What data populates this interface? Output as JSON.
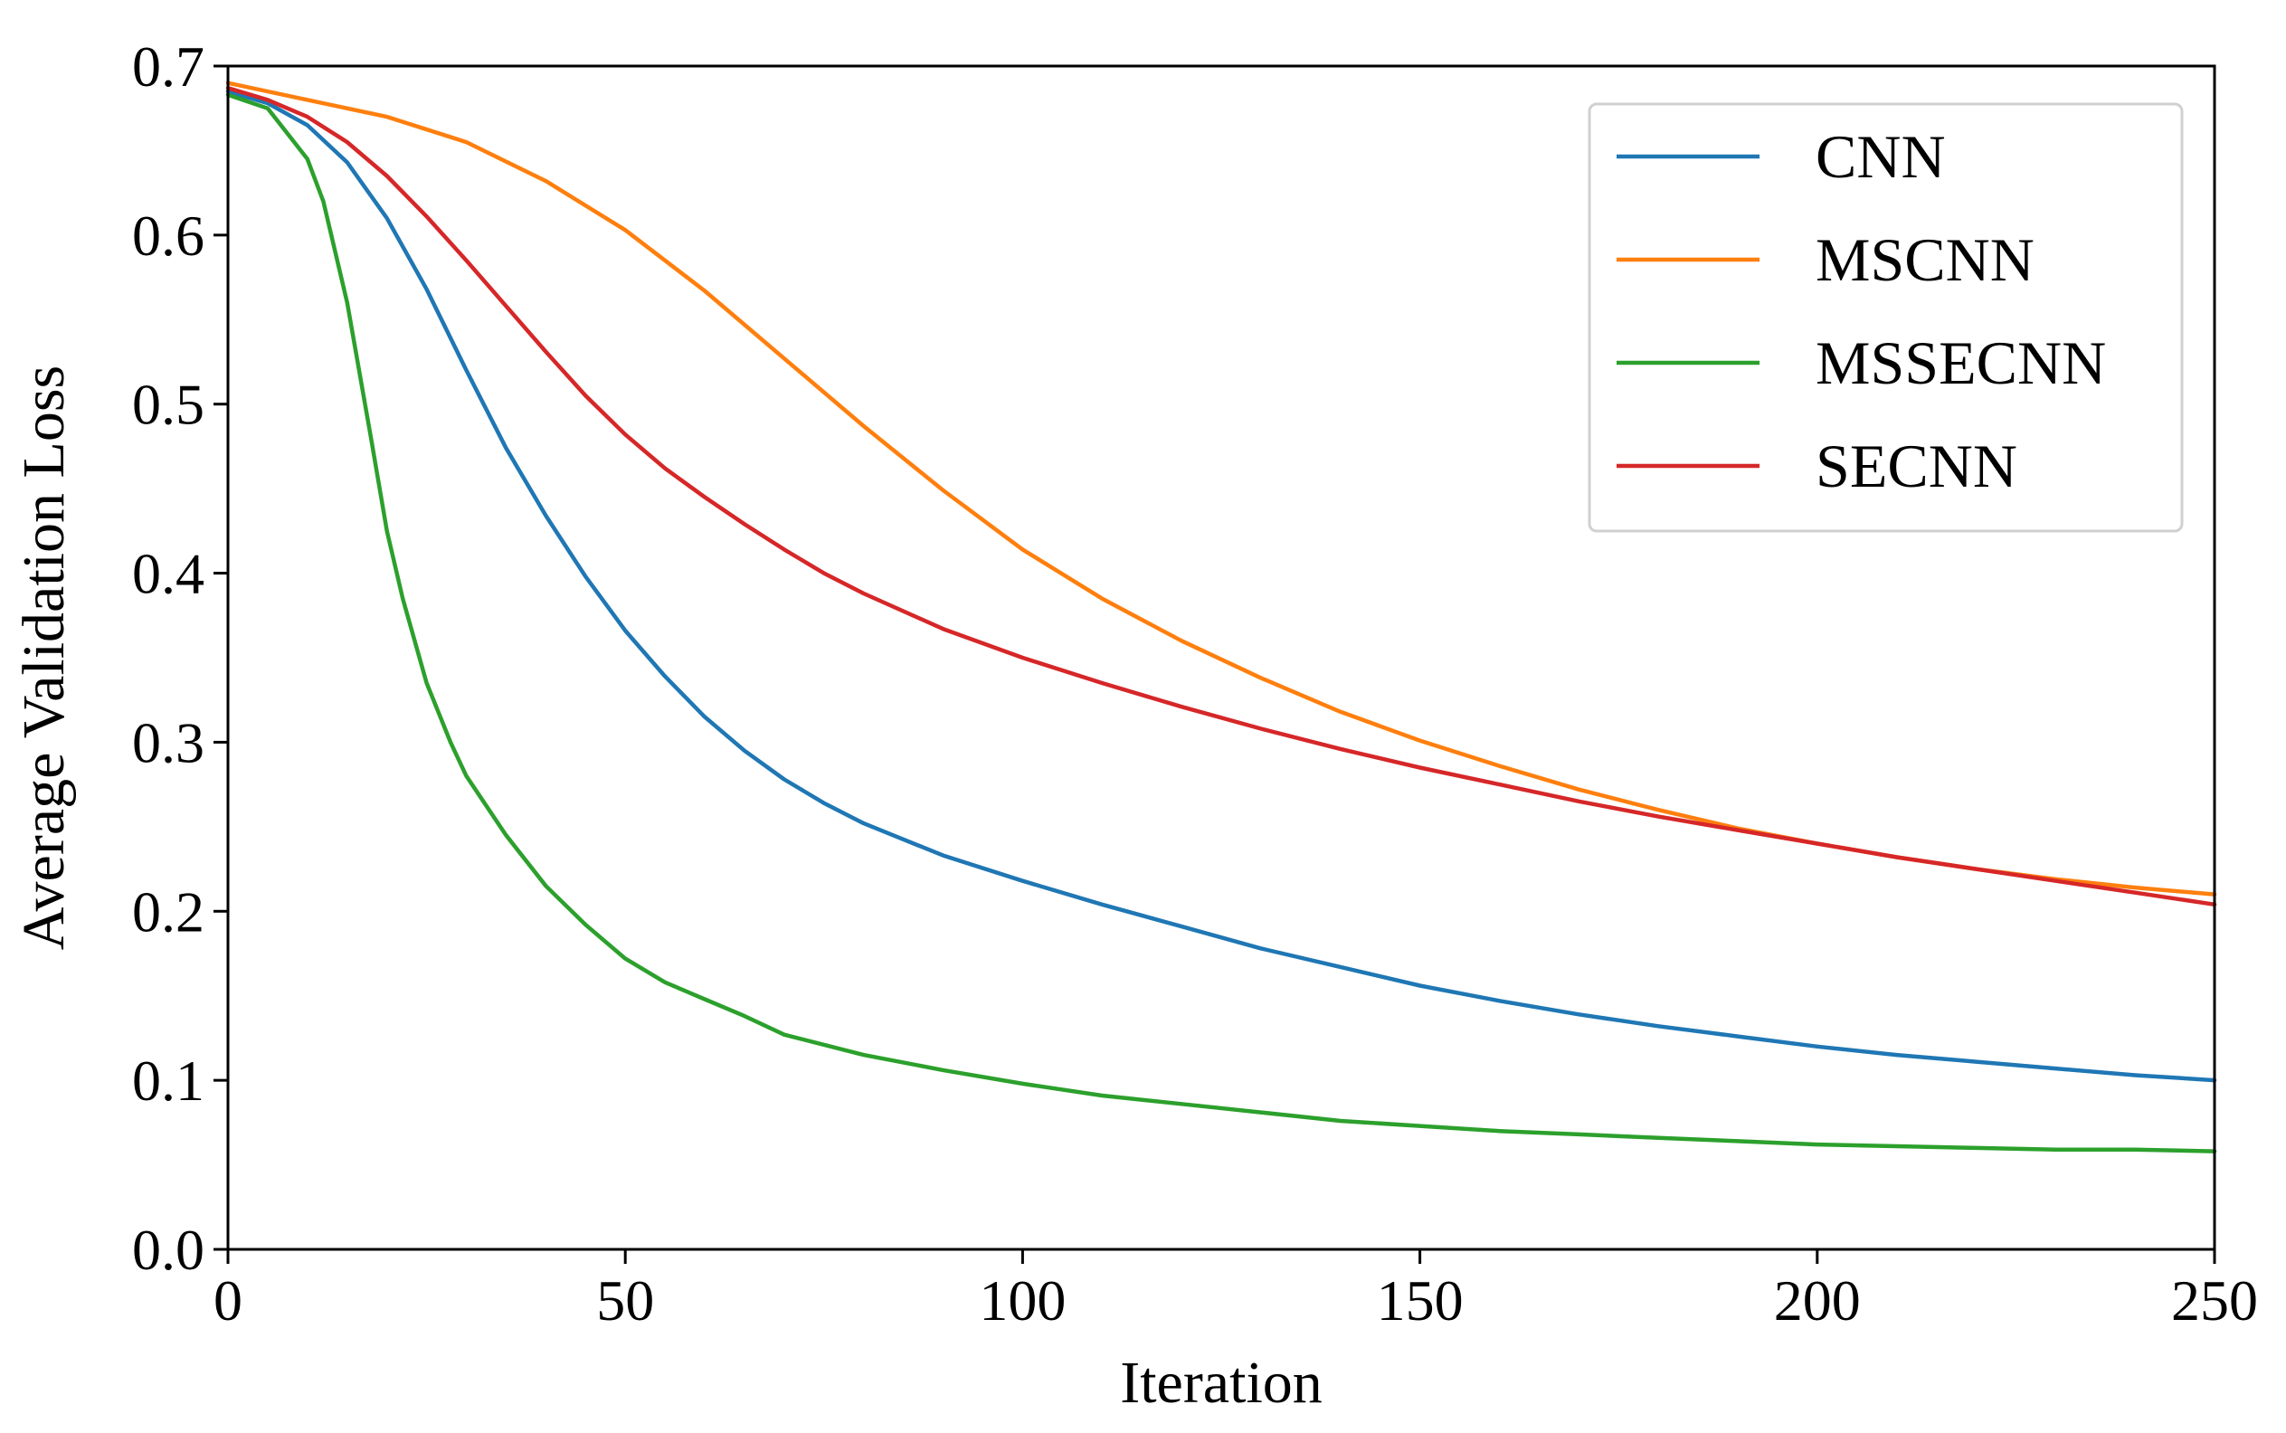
{
  "chart_data": {
    "type": "line",
    "title": "",
    "xlabel": "Iteration",
    "ylabel": "Average Validation Loss",
    "xlim": [
      0,
      250
    ],
    "ylim": [
      0.0,
      0.7
    ],
    "xticks": [
      0,
      50,
      100,
      150,
      200,
      250
    ],
    "xtick_labels": [
      "0",
      "50",
      "100",
      "150",
      "200",
      "250"
    ],
    "yticks": [
      0.0,
      0.1,
      0.2,
      0.3,
      0.4,
      0.5,
      0.6,
      0.7
    ],
    "ytick_labels": [
      "0.0",
      "0.1",
      "0.2",
      "0.3",
      "0.4",
      "0.5",
      "0.6",
      "0.7"
    ],
    "grid": false,
    "legend_position": "top-right",
    "series": [
      {
        "name": "CNN",
        "color": "#1f77b4",
        "x": [
          0,
          5,
          10,
          15,
          20,
          25,
          30,
          35,
          40,
          45,
          50,
          55,
          60,
          65,
          70,
          75,
          80,
          90,
          100,
          110,
          120,
          130,
          140,
          150,
          160,
          170,
          180,
          190,
          200,
          210,
          220,
          230,
          240,
          250
        ],
        "y": [
          0.685,
          0.678,
          0.665,
          0.643,
          0.61,
          0.568,
          0.52,
          0.474,
          0.434,
          0.398,
          0.366,
          0.339,
          0.315,
          0.295,
          0.278,
          0.264,
          0.252,
          0.233,
          0.218,
          0.204,
          0.191,
          0.178,
          0.167,
          0.156,
          0.147,
          0.139,
          0.132,
          0.126,
          0.12,
          0.115,
          0.111,
          0.107,
          0.103,
          0.1
        ]
      },
      {
        "name": "MSCNN",
        "color": "#ff7f0e",
        "x": [
          0,
          10,
          20,
          30,
          40,
          50,
          60,
          70,
          80,
          90,
          100,
          110,
          120,
          130,
          140,
          150,
          160,
          170,
          180,
          190,
          200,
          210,
          220,
          230,
          240,
          250
        ],
        "y": [
          0.69,
          0.68,
          0.67,
          0.655,
          0.632,
          0.603,
          0.567,
          0.527,
          0.487,
          0.449,
          0.414,
          0.385,
          0.36,
          0.338,
          0.318,
          0.301,
          0.286,
          0.272,
          0.26,
          0.249,
          0.24,
          0.232,
          0.225,
          0.219,
          0.214,
          0.21
        ]
      },
      {
        "name": "MSSECNN",
        "color": "#2ca02c",
        "x": [
          0,
          5,
          10,
          12,
          15,
          18,
          20,
          22,
          25,
          28,
          30,
          35,
          40,
          45,
          50,
          55,
          60,
          65,
          70,
          80,
          90,
          100,
          110,
          120,
          130,
          140,
          150,
          160,
          170,
          180,
          190,
          200,
          210,
          220,
          230,
          240,
          250
        ],
        "y": [
          0.683,
          0.675,
          0.645,
          0.62,
          0.56,
          0.48,
          0.425,
          0.385,
          0.335,
          0.3,
          0.28,
          0.245,
          0.215,
          0.192,
          0.172,
          0.158,
          0.148,
          0.138,
          0.127,
          0.115,
          0.106,
          0.098,
          0.091,
          0.086,
          0.081,
          0.076,
          0.073,
          0.07,
          0.068,
          0.066,
          0.064,
          0.062,
          0.061,
          0.06,
          0.059,
          0.059,
          0.058
        ]
      },
      {
        "name": "SECNN",
        "color": "#d62728",
        "x": [
          0,
          5,
          10,
          15,
          20,
          25,
          30,
          35,
          40,
          45,
          50,
          55,
          60,
          65,
          70,
          75,
          80,
          90,
          100,
          110,
          120,
          130,
          140,
          150,
          160,
          170,
          180,
          190,
          200,
          210,
          220,
          230,
          240,
          250
        ],
        "y": [
          0.687,
          0.68,
          0.67,
          0.655,
          0.635,
          0.611,
          0.585,
          0.558,
          0.531,
          0.505,
          0.482,
          0.462,
          0.445,
          0.429,
          0.414,
          0.4,
          0.388,
          0.367,
          0.35,
          0.335,
          0.321,
          0.308,
          0.296,
          0.285,
          0.275,
          0.265,
          0.256,
          0.248,
          0.24,
          0.232,
          0.225,
          0.218,
          0.211,
          0.204
        ]
      }
    ]
  }
}
